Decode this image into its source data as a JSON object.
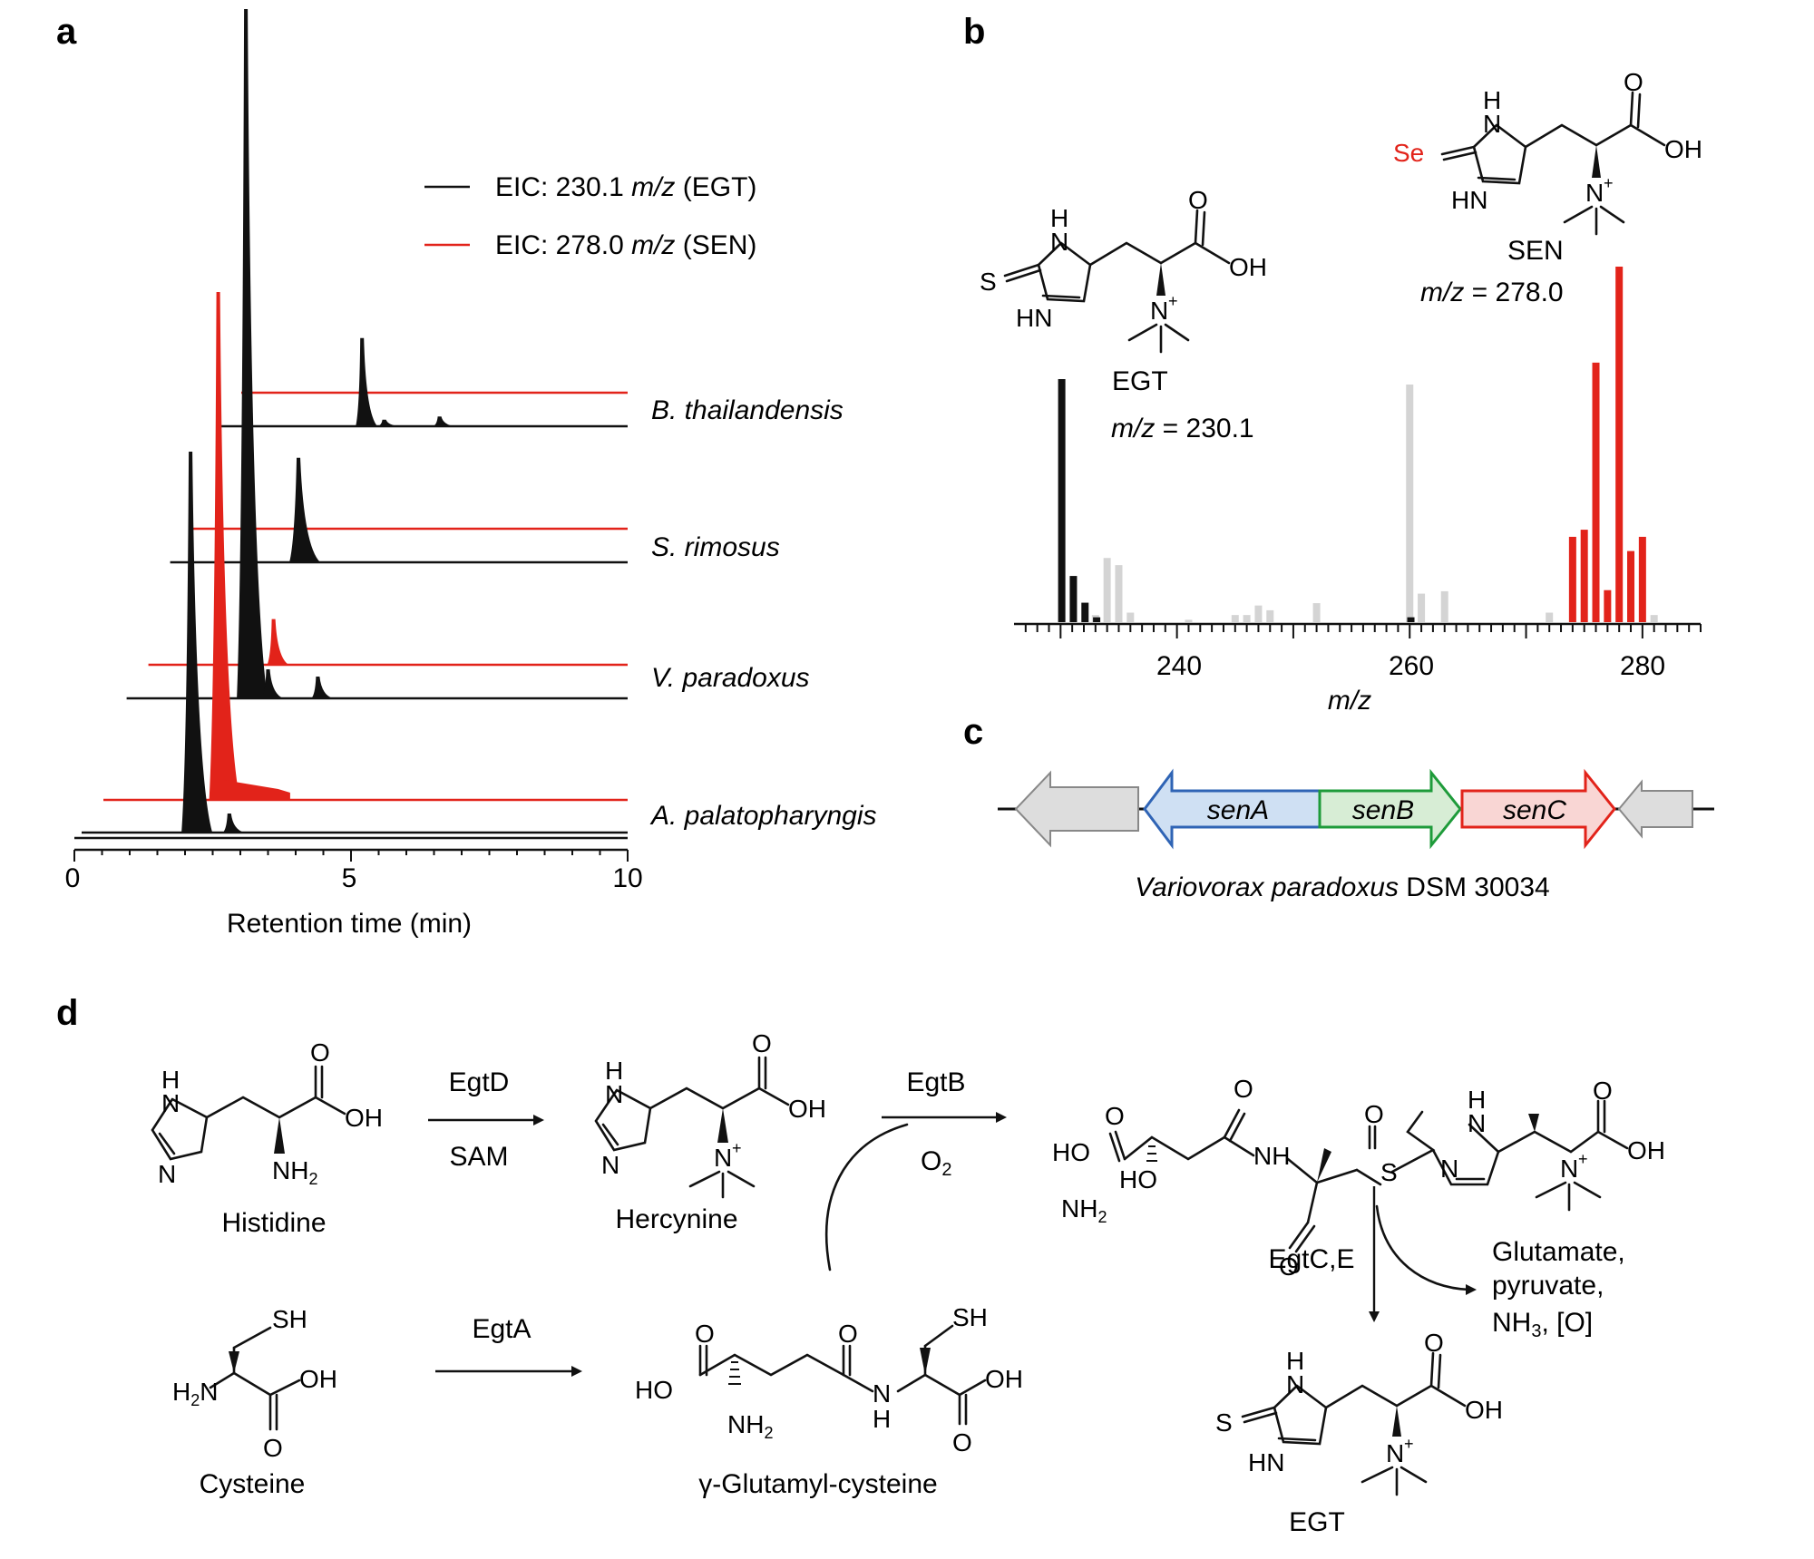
{
  "panel_labels": {
    "a": "a",
    "b": "b",
    "c": "c",
    "d": "d"
  },
  "colors": {
    "egt": "#111111",
    "sen": "#e2231a",
    "gray": "#d4d4d4",
    "senA": "#2f64b5",
    "senA_fill": "#cfe0f3",
    "senB": "#1e9b3a",
    "senB_fill": "#d7edd5",
    "senC": "#e2231a",
    "senC_fill": "#f9d6d4"
  },
  "chart_data": [
    {
      "type": "line",
      "panel": "a",
      "xlabel": "Retention time (min)",
      "xlim": [
        0,
        10
      ],
      "x_ticks": [
        "0",
        "5",
        "10"
      ],
      "legend": [
        {
          "prefix": "EIC: 230.1 ",
          "italic": "m/z",
          "suffix": " (EGT)",
          "color": "#111111"
        },
        {
          "prefix": "EIC: 278.0 ",
          "italic": "m/z",
          "suffix": " (SEN)",
          "color": "#e2231a"
        }
      ],
      "legend_position": "top-right",
      "traces": [
        {
          "name": "B. thailandensis",
          "egt_peaks": [
            {
              "rt": 5.2,
              "height": 0.27
            },
            {
              "rt": 5.6,
              "height": 0.02
            },
            {
              "rt": 6.6,
              "height": 0.03
            }
          ],
          "sen_peaks": []
        },
        {
          "name": "S. rimosus",
          "egt_peaks": [
            {
              "rt": 4.05,
              "height": 0.32
            }
          ],
          "sen_peaks": []
        },
        {
          "name": "V. paradoxus",
          "egt_peaks": [
            {
              "rt": 3.1,
              "height": 0.95
            },
            {
              "rt": 3.5,
              "height": 0.04
            },
            {
              "rt": 4.4,
              "height": 0.03
            }
          ],
          "sen_peaks": [
            {
              "rt": 3.6,
              "height": 0.14
            }
          ]
        },
        {
          "name": "A. palatopharyngis",
          "egt_peaks": [
            {
              "rt": 2.1,
              "height": 1.0
            },
            {
              "rt": 2.8,
              "height": 0.05
            }
          ],
          "sen_peaks": [
            {
              "rt": 2.6,
              "height": 1.0
            }
          ]
        }
      ]
    },
    {
      "type": "bar",
      "panel": "b",
      "xlabel": "m/z",
      "xlim": [
        226,
        285
      ],
      "x_ticks": [
        "240",
        "260",
        "280"
      ],
      "series": [
        {
          "name": "EGT",
          "color": "#111111",
          "x": [
            230.1,
            231.1,
            232.1,
            233.1,
            260.1
          ],
          "values": [
            1.0,
            0.19,
            0.08,
            0.02,
            0.02
          ]
        },
        {
          "name": "SEN",
          "color": "#e2231a",
          "x": [
            274,
            275,
            276,
            277,
            278,
            279,
            280
          ],
          "values": [
            0.24,
            0.26,
            0.73,
            0.09,
            1.0,
            0.2,
            0.24
          ]
        },
        {
          "name": "",
          "color": "#d4d4d4",
          "x": [
            233,
            234,
            235,
            236,
            241,
            245,
            246,
            247,
            248,
            252,
            260,
            261,
            263,
            272,
            281
          ],
          "values": [
            0.03,
            0.27,
            0.24,
            0.04,
            0.01,
            0.03,
            0.03,
            0.07,
            0.05,
            0.08,
            1.0,
            0.12,
            0.13,
            0.04,
            0.03
          ]
        }
      ],
      "annotations": [
        {
          "name": "EGT",
          "mz_label": "m/z = 230.1"
        },
        {
          "name": "SEN",
          "mz_label": "m/z = 278.0"
        }
      ]
    }
  ],
  "panel_b": {
    "egt_label": "EGT",
    "egt_mz_italic": "m/z",
    "egt_mz_value": " = 230.1",
    "sen_label": "SEN",
    "sen_mz_italic": "m/z",
    "sen_mz_value": " = 278.0",
    "x_axis_label": "m/z"
  },
  "panel_c": {
    "genes": [
      "senA",
      "senB",
      "senC"
    ],
    "organism_italic": "Variovorax paradoxus",
    "organism_strain": " DSM 30034"
  },
  "panel_d": {
    "compounds": {
      "histidine": "Histidine",
      "hercynine": "Hercynine",
      "cysteine": "Cysteine",
      "glu_cys": "γ-Glutamyl-cysteine",
      "egt": "EGT"
    },
    "enzymes": {
      "egtD": "EgtD",
      "sam": "SAM",
      "egtB": "EgtB",
      "o2": "O2",
      "egtA": "EgtA",
      "egtCE": "EgtC,E"
    },
    "byproducts": [
      "Glutamate,",
      "pyruvate,",
      "NH3, [O]"
    ]
  }
}
